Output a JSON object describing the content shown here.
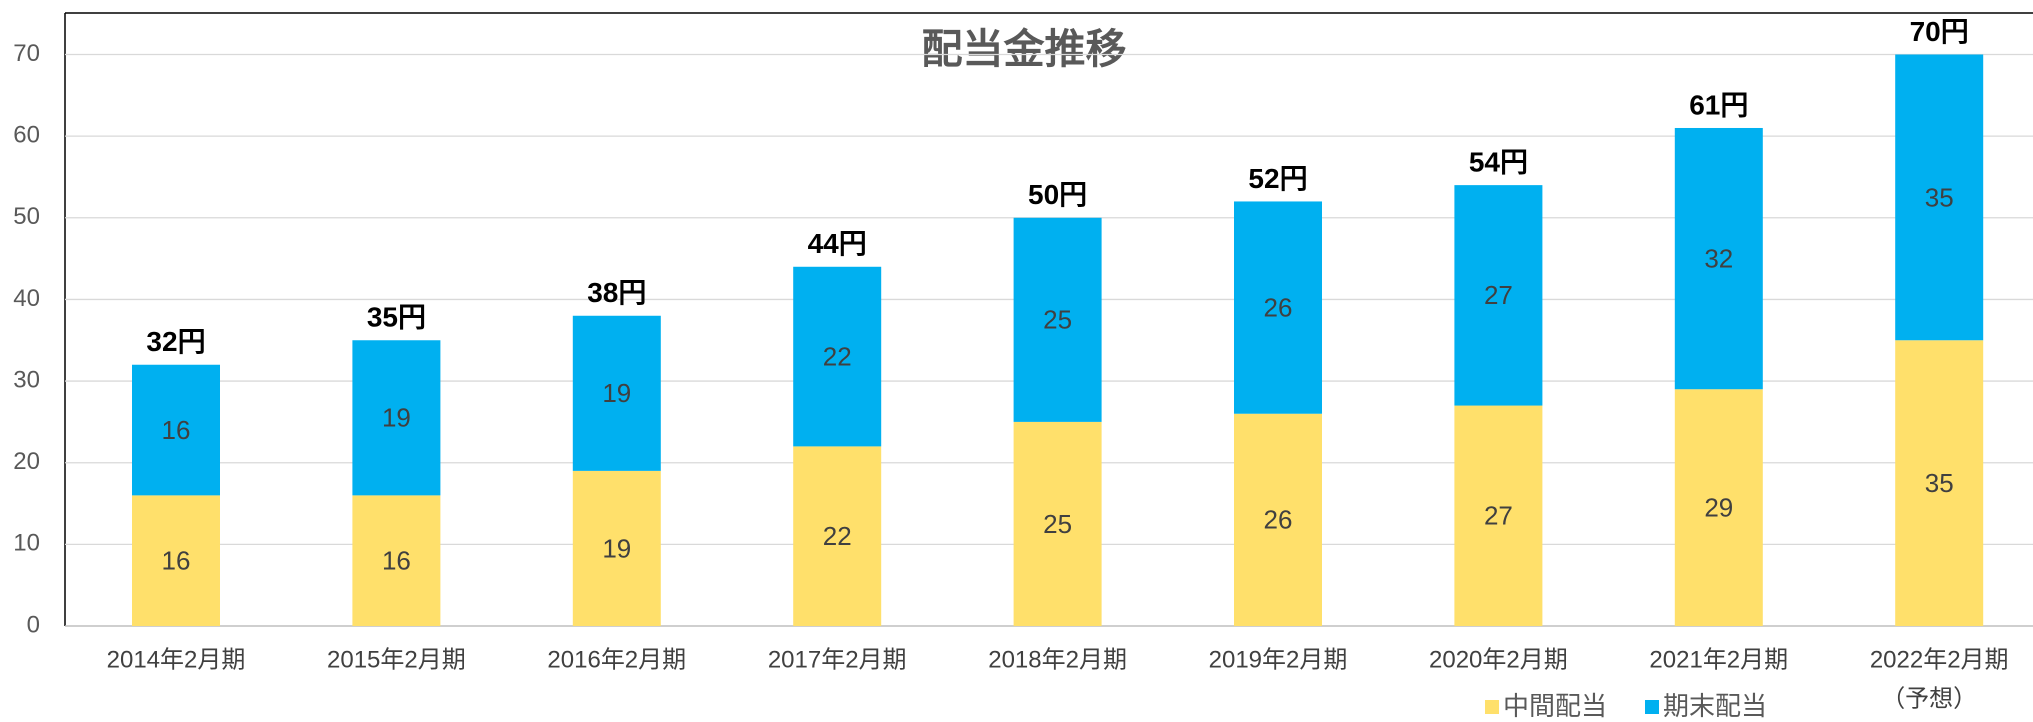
{
  "chart_data": {
    "type": "stacked_bar",
    "title": "配当金推移",
    "categories": [
      "2014年2月期",
      "2015年2月期",
      "2016年2月期",
      "2017年2月期",
      "2018年2月期",
      "2019年2月期",
      "2020年2月期",
      "2021年2月期",
      "2022年2月期"
    ],
    "forecast_label": "（予想）",
    "series": [
      {
        "name": "中間配当",
        "color": "#FFE06B",
        "values": [
          16,
          16,
          19,
          22,
          25,
          26,
          27,
          29,
          35
        ]
      },
      {
        "name": "期末配当",
        "color": "#00B0F0",
        "values": [
          16,
          19,
          19,
          22,
          25,
          26,
          27,
          32,
          35
        ]
      }
    ],
    "totals": [
      32,
      35,
      38,
      44,
      50,
      52,
      54,
      61,
      70
    ],
    "total_labels": [
      "32円",
      "35円",
      "38円",
      "44円",
      "50円",
      "52円",
      "54円",
      "61円",
      "70円"
    ],
    "ylim": [
      0,
      70
    ],
    "yticks": [
      0,
      10,
      20,
      30,
      40,
      50,
      60,
      70
    ],
    "grid": true
  }
}
